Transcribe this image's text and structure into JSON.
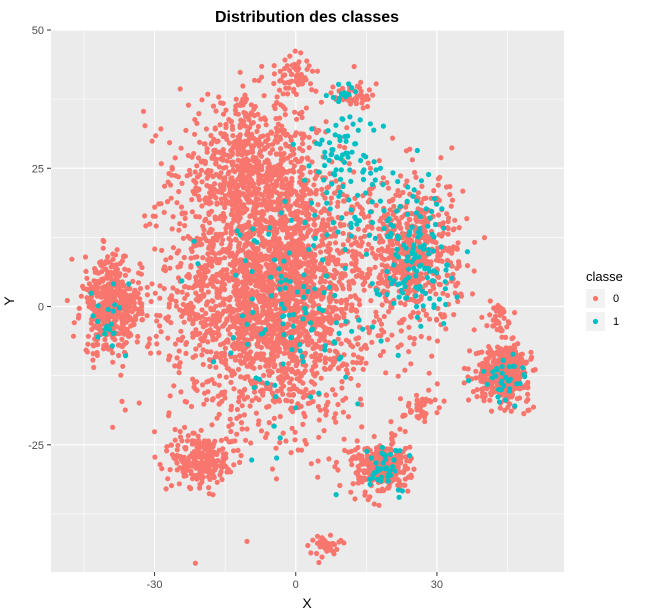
{
  "chart_data": {
    "type": "scatter",
    "title": "Distribution des classes",
    "xlabel": "X",
    "ylabel": "Y",
    "xlim": [
      -52,
      57
    ],
    "ylim": [
      -48,
      50
    ],
    "x_ticks": [
      -30,
      0,
      30
    ],
    "y_ticks": [
      -25,
      0,
      25,
      50
    ],
    "grid": true,
    "legend_position": "right",
    "legend_title": "classe",
    "colors": {
      "0": "#F8766D",
      "1": "#00BFC4",
      "panel": "#EBEBEB",
      "grid": "#FFFFFF"
    },
    "series": [
      {
        "name": "0",
        "color": "#F8766D",
        "clusters": [
          {
            "cx": -5,
            "cy": 3,
            "sx": 17,
            "sy": 19,
            "n": 2600
          },
          {
            "cx": -10,
            "cy": 25,
            "sx": 12,
            "sy": 10,
            "n": 600
          },
          {
            "cx": 25,
            "cy": 10,
            "sx": 8,
            "sy": 11,
            "n": 500
          },
          {
            "cx": -39,
            "cy": 0,
            "sx": 5,
            "sy": 7,
            "n": 420
          },
          {
            "cx": 44,
            "cy": -12,
            "sx": 4.5,
            "sy": 4,
            "n": 420
          },
          {
            "cx": 18,
            "cy": -29,
            "sx": 5,
            "sy": 4,
            "n": 260
          },
          {
            "cx": -20,
            "cy": -28,
            "sx": 5,
            "sy": 4,
            "n": 240
          },
          {
            "cx": 0,
            "cy": 42,
            "sx": 3,
            "sy": 3,
            "n": 60
          },
          {
            "cx": 12,
            "cy": 38,
            "sx": 3,
            "sy": 2,
            "n": 50
          },
          {
            "cx": 6,
            "cy": -43,
            "sx": 2.5,
            "sy": 1.5,
            "n": 40
          },
          {
            "cx": 43,
            "cy": -2,
            "sx": 2,
            "sy": 2,
            "n": 35
          },
          {
            "cx": 26,
            "cy": -18,
            "sx": 3,
            "sy": 2,
            "n": 45
          }
        ]
      },
      {
        "name": "1",
        "color": "#00BFC4",
        "clusters": [
          {
            "cx": 25,
            "cy": 10,
            "sx": 7,
            "sy": 10,
            "n": 130
          },
          {
            "cx": 10,
            "cy": 25,
            "sx": 8,
            "sy": 10,
            "n": 90
          },
          {
            "cx": 0,
            "cy": 0,
            "sx": 14,
            "sy": 16,
            "n": 120
          },
          {
            "cx": 19,
            "cy": -29,
            "sx": 4,
            "sy": 4,
            "n": 40
          },
          {
            "cx": 44,
            "cy": -13,
            "sx": 4,
            "sy": 3.5,
            "n": 35
          },
          {
            "cx": -39,
            "cy": -2,
            "sx": 4,
            "sy": 6,
            "n": 20
          },
          {
            "cx": 10,
            "cy": 38,
            "sx": 3,
            "sy": 2,
            "n": 15
          }
        ]
      }
    ]
  }
}
